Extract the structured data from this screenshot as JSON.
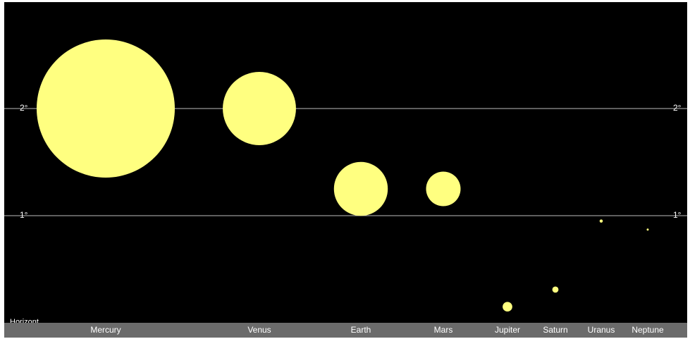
{
  "gridlines": [
    {
      "label": "2°",
      "value": 2
    },
    {
      "label": "1°",
      "value": 1
    }
  ],
  "horizon_label": "Horizont",
  "colors": {
    "sky": "#000000",
    "planet": "#ffff80",
    "gridline": "#bdbdbd",
    "ground": "#6b6b6b",
    "text": "#ffffff"
  },
  "planets": [
    {
      "name": "Mercury",
      "altitude_deg": 2.0,
      "relative_size": 1.0
    },
    {
      "name": "Venus",
      "altitude_deg": 2.0,
      "relative_size": 0.53
    },
    {
      "name": "Earth",
      "altitude_deg": 1.25,
      "relative_size": 0.39
    },
    {
      "name": "Mars",
      "altitude_deg": 1.25,
      "relative_size": 0.25
    },
    {
      "name": "Jupiter",
      "altitude_deg": 0.15,
      "relative_size": 0.07
    },
    {
      "name": "Saturn",
      "altitude_deg": 0.31,
      "relative_size": 0.045
    },
    {
      "name": "Uranus",
      "altitude_deg": 0.95,
      "relative_size": 0.023
    },
    {
      "name": "Neptune",
      "altitude_deg": 0.87,
      "relative_size": 0.015
    }
  ]
}
